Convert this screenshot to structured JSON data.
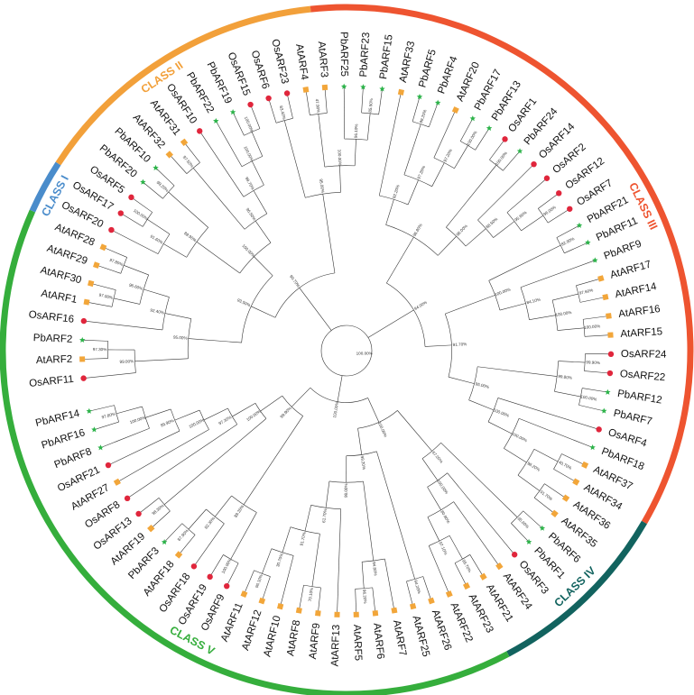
{
  "legend": {
    "At": {
      "shape": "square",
      "color": "#F2A63A"
    },
    "Os": {
      "shape": "circle",
      "color": "#E0263C"
    },
    "Pb": {
      "shape": "star",
      "color": "#2DB34A"
    }
  },
  "classes": [
    {
      "name": "CLASS II",
      "color": "#F2A03A"
    },
    {
      "name": "CLASS III",
      "color": "#EE5430"
    },
    {
      "name": "CLASS IV",
      "color": "#12635F"
    },
    {
      "name": "CLASS V",
      "color": "#35AE3C"
    },
    {
      "name": "CLASS I",
      "color": "#4A8CCB"
    }
  ],
  "leaves": [
    "OsARF11",
    "AtARF2",
    "PbARF2",
    "OsARF16",
    "AtARF1",
    "AtARF30",
    "AtARF29",
    "AtARF28",
    "OsARF20",
    "OsARF17",
    "OsARF5",
    "PbARF20",
    "PbARF10",
    "AtARF32",
    "AtARF31",
    "OsARF10",
    "PbARF22",
    "PbARF19",
    "OsARF15",
    "OsARF6",
    "OsARF23",
    "AtARF4",
    "AtARF3",
    "PbARF25",
    "PbARF23",
    "PbARF15",
    "AtARF33",
    "PbARF5",
    "PbARF4",
    "AtARF20",
    "PbARF17",
    "PbARF13",
    "OsARF1",
    "PbARF24",
    "OsARF14",
    "OsARF2",
    "OsARF12",
    "OsARF7",
    "PbARF21",
    "PbARF11",
    "PbARF9",
    "AtARF17",
    "AtARF14",
    "AtARF16",
    "AtARF15",
    "OsARF24",
    "OsARF22",
    "PbARF12",
    "PbARF7",
    "OsARF4",
    "PbARF18",
    "AtARF37",
    "AtARF34",
    "AtARF36",
    "AtARF35",
    "PbARF6",
    "PbARF1",
    "OsARF3",
    "AtARF24",
    "AtARF21",
    "AtARF23",
    "AtARF22",
    "AtARF26",
    "AtARF25",
    "AtARF7",
    "AtARF6",
    "AtARF5",
    "AtARF13",
    "AtARF9",
    "AtARF8",
    "AtARF10",
    "AtARF12",
    "AtARF11",
    "OsARF9",
    "OsARF19",
    "OsARF18",
    "AtARF18",
    "PbARF3",
    "AtARF19",
    "OsARF13",
    "OsARF8",
    "AtARF27",
    "OsARF21",
    "PbARF8",
    "PbARF16",
    "PbARF14"
  ],
  "support_values": [
    "90.70%",
    "93.50%",
    "95.00%",
    "99.00%",
    "97.30%",
    "92.40%",
    "96.60%",
    "97.00%",
    "97.80%",
    "100.00%",
    "88.90%",
    "91.60%",
    "100.00%",
    "99.20%",
    "96.50%",
    "97.50%",
    "99.70%",
    "100.00%",
    "100.00%",
    "95.00%",
    "83.40%",
    "100.00%",
    "47.90%",
    "96.10%",
    "85.50%",
    "94.00%",
    "96.80%",
    "92.20%",
    "97.20%",
    "99.20%",
    "97.20%",
    "100.00%",
    "98.00%",
    "100.00%",
    "88.50%",
    "95.60%",
    "96.00%",
    "91.70%",
    "100.00%",
    "82.90%",
    "84.10%",
    "100.00%",
    "97.60%",
    "100.00%",
    "95.00%",
    "99.80%",
    "99.90%",
    "100.00%",
    "100.00%",
    "100.00%",
    "98.20%",
    "40.70%",
    "91.70%",
    "100.00%",
    "100.00%",
    "67.00%",
    "95.60%",
    "100.00%",
    "80.80%",
    "97.10%",
    "99.70%",
    "99.20%",
    "94.20%",
    "98.00%",
    "94.80%",
    "96.20%",
    "61.70%",
    "91.70%",
    "70.10%",
    "30.70%",
    "96.10%",
    "99.90%",
    "89.20%",
    "100.00%",
    "82.30%",
    "87.90%",
    "100.00%",
    "98.30%",
    "97.30%",
    "100.00%",
    "99.90%",
    "100.00%",
    "97.80%",
    "100.00%",
    "58.00%",
    "96.30%",
    "95.00%",
    "100.00%",
    "92.70%",
    "100.00%"
  ]
}
